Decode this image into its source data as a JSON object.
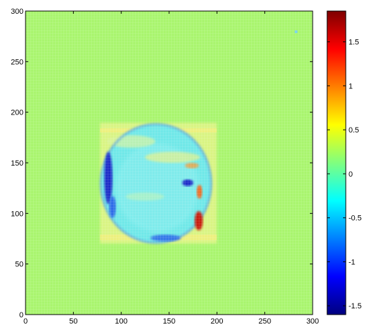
{
  "chart_data": {
    "type": "heatmap",
    "title": "",
    "xlabel": "",
    "ylabel": "",
    "xlim": [
      0,
      300
    ],
    "ylim": [
      0,
      300
    ],
    "x_ticks": [
      "0",
      "50",
      "100",
      "150",
      "200",
      "250",
      "300"
    ],
    "y_ticks": [
      "0",
      "50",
      "100",
      "150",
      "200",
      "250",
      "300"
    ],
    "colormap": "jet",
    "background_value": 0.3,
    "colorbar": {
      "range": [
        -1.6,
        1.85
      ],
      "ticks": [
        "1.5",
        "1",
        "0.5",
        "0",
        "-0.5",
        "-1",
        "-1.5"
      ]
    },
    "features": [
      {
        "name": "square-patch",
        "x_range": [
          78,
          200
        ],
        "y_range": [
          70,
          190
        ],
        "value": 0.6
      },
      {
        "name": "circular-object",
        "center": [
          140,
          130
        ],
        "radius_x": 57,
        "radius_y": 58,
        "value": -0.25
      },
      {
        "name": "left-edge-low",
        "x": 85,
        "y": 135,
        "value": -1.3
      },
      {
        "name": "right-edge-high",
        "x": 183,
        "y": 107,
        "value": 1.5
      },
      {
        "name": "small-dot",
        "x": 285,
        "y": 280,
        "value": -0.1
      }
    ]
  }
}
